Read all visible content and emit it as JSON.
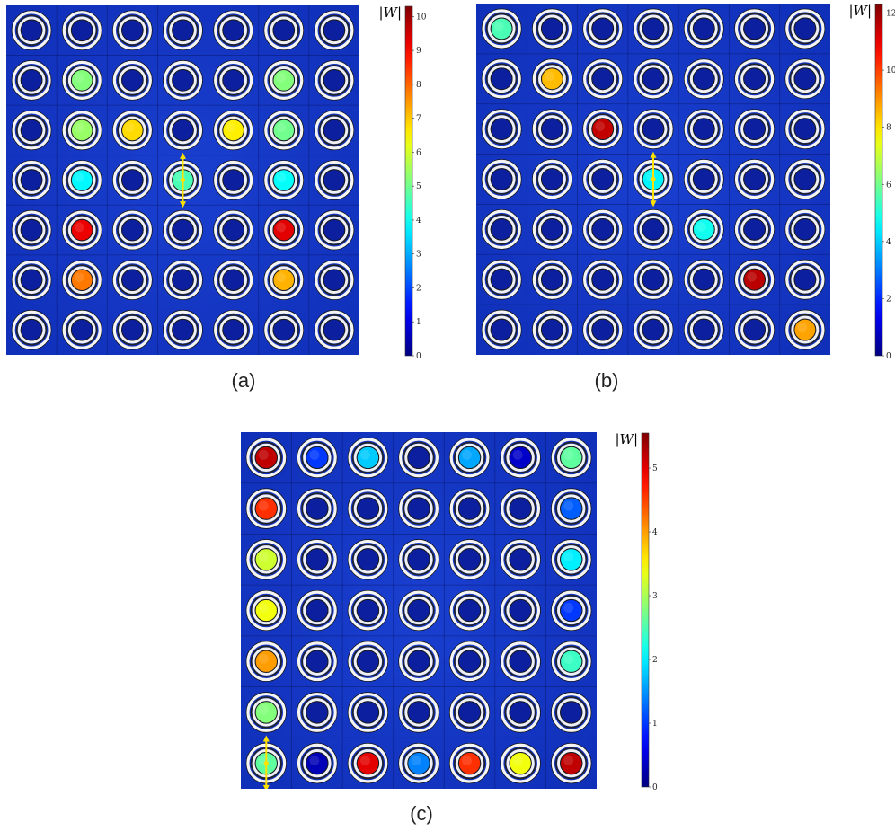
{
  "panels": [
    {
      "caption": "(a)",
      "colorbar": {
        "title": "|W|",
        "max_label_value": 10.3,
        "ticks": [
          0,
          1,
          2,
          3,
          4,
          5,
          6,
          7,
          8,
          9,
          10
        ]
      },
      "source": {
        "row": 3,
        "col": 3,
        "arrow": "vertical"
      },
      "field": [
        [
          0,
          0,
          0,
          0,
          0,
          0,
          0
        ],
        [
          0,
          5.2,
          0,
          0,
          0,
          5.2,
          0
        ],
        [
          0,
          5.4,
          6.8,
          0,
          6.6,
          5.0,
          0
        ],
        [
          0,
          3.8,
          0,
          4.6,
          0,
          3.9,
          0
        ],
        [
          0,
          9.2,
          0,
          0,
          0,
          9.3,
          0
        ],
        [
          0,
          7.8,
          0,
          0,
          0,
          7.2,
          0
        ],
        [
          0,
          0,
          0,
          0,
          0,
          0,
          0
        ]
      ]
    },
    {
      "caption": "(b)",
      "colorbar": {
        "title": "|W|",
        "max_label_value": 12.3,
        "ticks": [
          0,
          2,
          4,
          6,
          8,
          10,
          12
        ]
      },
      "source": {
        "row": 3,
        "col": 3,
        "arrow": "vertical"
      },
      "field": [
        [
          5.5,
          0,
          0,
          0,
          0,
          0,
          0
        ],
        [
          0,
          8.5,
          0,
          0,
          0,
          0,
          0
        ],
        [
          0,
          0,
          11.5,
          0,
          0,
          0,
          0
        ],
        [
          0,
          0,
          0,
          4.5,
          0,
          0,
          0
        ],
        [
          0,
          0,
          0,
          0,
          4.8,
          0,
          0
        ],
        [
          0,
          0,
          0,
          0,
          0,
          11.6,
          0
        ],
        [
          0,
          0,
          0,
          0,
          0,
          0,
          8.8
        ]
      ]
    },
    {
      "caption": "(c)",
      "colorbar": {
        "title": "|W|",
        "max_label_value": 5.55,
        "ticks": [
          0,
          1,
          2,
          3,
          4,
          5
        ]
      },
      "source": {
        "row": 6,
        "col": 0,
        "arrow": "vertical"
      },
      "field": [
        [
          5.2,
          1.0,
          1.8,
          0,
          1.6,
          0.4,
          2.6
        ],
        [
          4.6,
          0,
          0,
          0,
          0,
          0,
          1.2
        ],
        [
          3.2,
          0,
          0,
          0,
          0,
          0,
          2.0
        ],
        [
          3.4,
          0,
          0,
          0,
          0,
          0,
          1.0
        ],
        [
          4.0,
          0,
          0,
          0,
          0,
          0,
          2.4
        ],
        [
          2.8,
          0,
          0,
          0,
          0,
          0,
          0
        ],
        [
          2.6,
          0.3,
          5.0,
          1.4,
          4.6,
          3.4,
          5.2
        ]
      ]
    }
  ]
}
